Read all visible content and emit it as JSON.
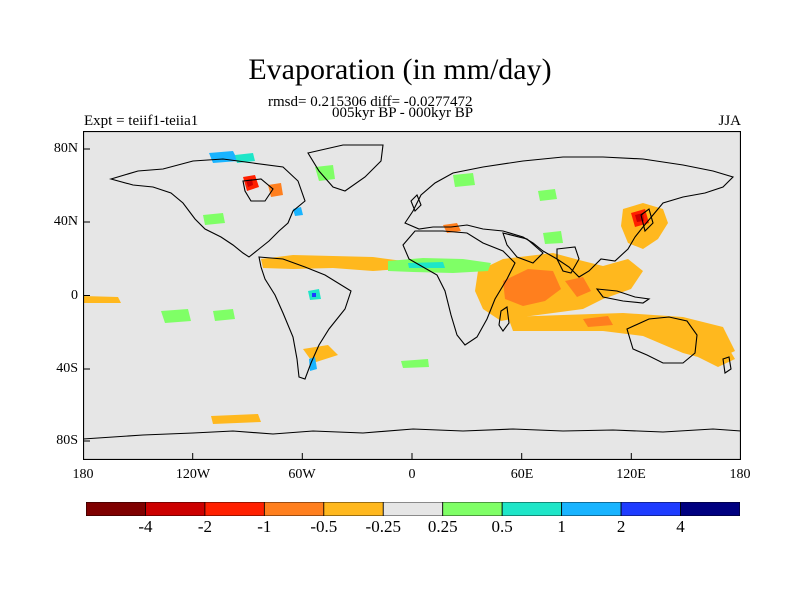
{
  "title": "Evaporation (in mm/day)",
  "stats_line": "rmsd= 0.215306 diff= -0.0277472",
  "period_line": "005kyr BP - 000kyr BP",
  "experiment_label": "Expt = teiif1-teiia1",
  "season_label": "JJA",
  "map": {
    "background_color": "#e6e6e6",
    "coastline_color": "#000000",
    "lon_ticks": [
      "180",
      "120W",
      "60W",
      "0",
      "60E",
      "120E",
      "180"
    ],
    "lat_ticks": [
      "80N",
      "40N",
      "0",
      "40S",
      "80S"
    ]
  },
  "legend": {
    "colors": [
      "#7f0000",
      "#cc0000",
      "#ff2000",
      "#ff7f1e",
      "#ffb81e",
      "#e6e6e6",
      "#7fff66",
      "#1ee6c8",
      "#19b4ff",
      "#1e3cff",
      "#000080"
    ],
    "labels": [
      "-4",
      "-2",
      "-1",
      "-0.5",
      "-0.25",
      "0.25",
      "0.5",
      "1",
      "2",
      "4"
    ]
  }
}
